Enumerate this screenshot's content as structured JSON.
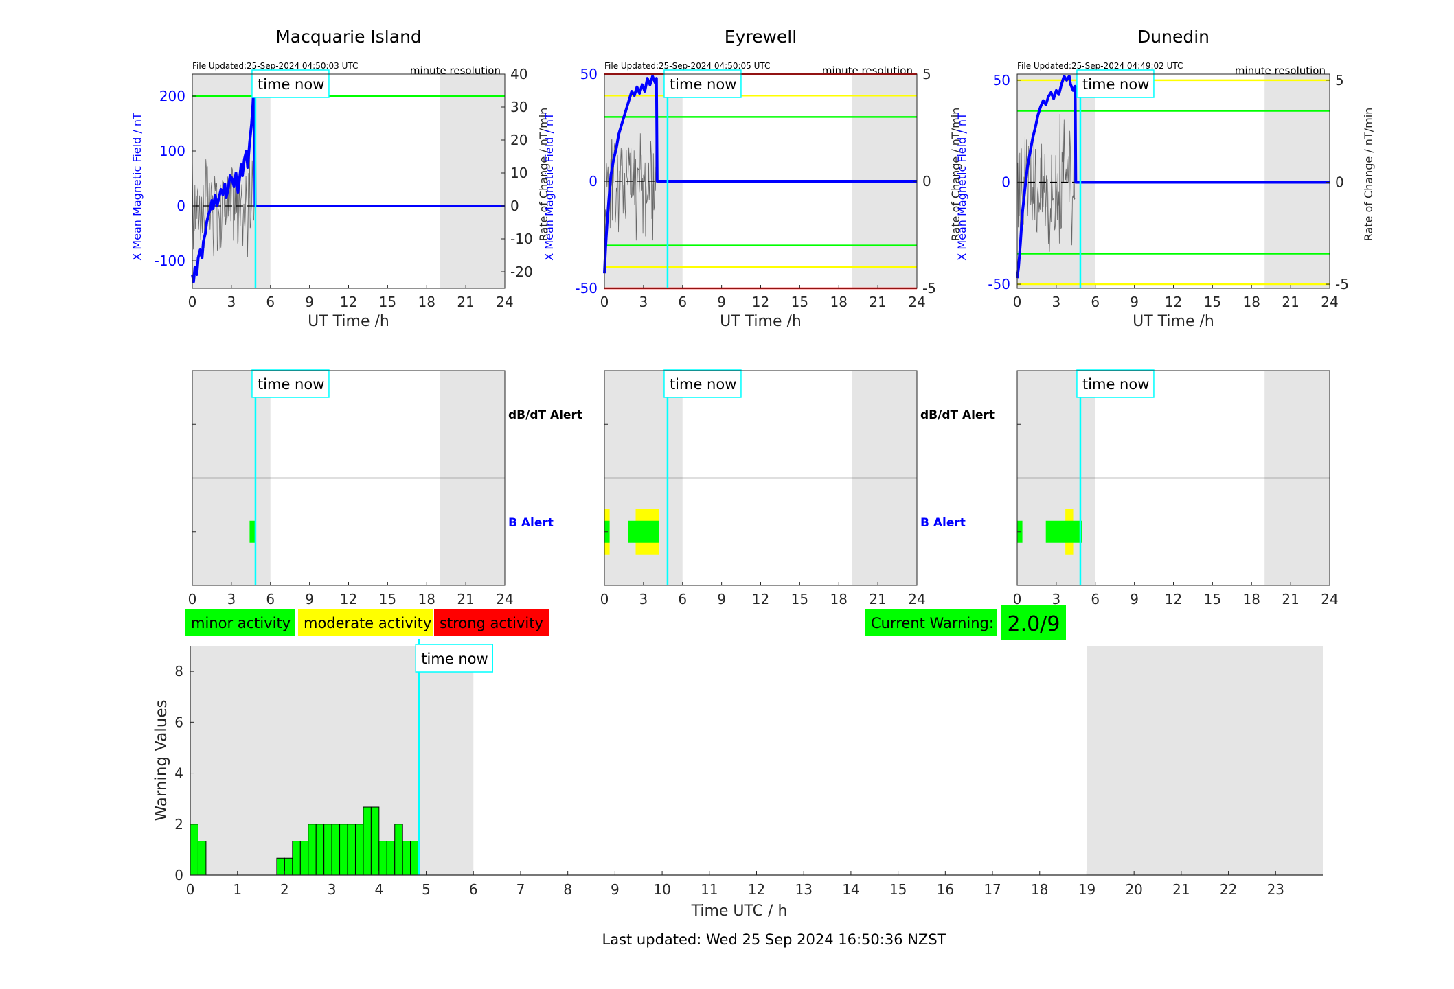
{
  "footer": "Last updated: Wed 25 Sep 2024 16:50:36 NZST",
  "time_now_label": "time now",
  "time_now_hour": 4.85,
  "night_shading": [
    [
      0,
      6
    ],
    [
      19,
      24
    ]
  ],
  "colors": {
    "blue": "#0000ff",
    "green": "#00ff00",
    "yellow": "#ffff00",
    "red": "#ff0000",
    "cyan": "#00ffff",
    "shade": "#e5e5e5"
  },
  "legend": {
    "minor": "minor activity",
    "moderate": "moderate activity",
    "strong": "strong activity"
  },
  "current_warning": {
    "label": "Current Warning:",
    "value": "2.0/9"
  },
  "alert_labels": {
    "dbdt": "dB/dT Alert",
    "b": "B Alert"
  },
  "stations": [
    {
      "name": "Macquarie Island",
      "file_updated": "File Updated:25-Sep-2024 04:50:03 UTC",
      "resolution": "minute resolution",
      "xlabel": "UT Time /h",
      "ylabel_left": "X Mean Magnetic Field / nT",
      "ylabel_right": "Rate of Change / nT/min",
      "left_range": [
        -150,
        240
      ],
      "left_ticks": [
        -100,
        0,
        100,
        200
      ],
      "right_range": [
        -25,
        40
      ],
      "right_ticks": [
        -20,
        -10,
        0,
        10,
        20,
        30,
        40
      ],
      "x_ticks": [
        0,
        3,
        6,
        9,
        12,
        15,
        18,
        21,
        24
      ],
      "thresholds": [
        {
          "value": 200,
          "color": "green"
        }
      ],
      "field_trace": [
        [
          0,
          -125
        ],
        [
          0.1,
          -138
        ],
        [
          0.2,
          -112
        ],
        [
          0.35,
          -125
        ],
        [
          0.45,
          -95
        ],
        [
          0.6,
          -80
        ],
        [
          0.75,
          -95
        ],
        [
          0.85,
          -65
        ],
        [
          1.0,
          -50
        ],
        [
          1.1,
          -30
        ],
        [
          1.25,
          -15
        ],
        [
          1.4,
          -5
        ],
        [
          1.5,
          10
        ],
        [
          1.6,
          -5
        ],
        [
          1.75,
          20
        ],
        [
          1.9,
          0
        ],
        [
          2.05,
          15
        ],
        [
          2.2,
          30
        ],
        [
          2.35,
          20
        ],
        [
          2.5,
          40
        ],
        [
          2.6,
          15
        ],
        [
          2.75,
          30
        ],
        [
          2.9,
          55
        ],
        [
          3.05,
          50
        ],
        [
          3.2,
          35
        ],
        [
          3.35,
          60
        ],
        [
          3.5,
          25
        ],
        [
          3.6,
          45
        ],
        [
          3.75,
          75
        ],
        [
          3.85,
          55
        ],
        [
          4.0,
          85
        ],
        [
          4.15,
          100
        ],
        [
          4.25,
          70
        ],
        [
          4.4,
          115
        ],
        [
          4.55,
          150
        ],
        [
          4.65,
          185
        ],
        [
          4.72,
          220
        ],
        [
          4.78,
          210
        ],
        [
          4.82,
          0
        ],
        [
          24,
          0
        ]
      ],
      "b_alert": [
        {
          "start": 4.4,
          "end": 4.8,
          "level": "green"
        }
      ]
    },
    {
      "name": "Eyrewell",
      "file_updated": "File Updated:25-Sep-2024 04:50:05 UTC",
      "resolution": "minute resolution",
      "xlabel": "UT Time /h",
      "ylabel_left": "X Mean Magnetic Field / nT",
      "ylabel_right": "Rate of Change / nT/min",
      "left_range": [
        -50,
        50
      ],
      "left_ticks": [
        -50,
        0,
        50
      ],
      "right_range": [
        -5,
        5
      ],
      "right_ticks": [
        -5,
        0,
        5
      ],
      "x_ticks": [
        0,
        3,
        6,
        9,
        12,
        15,
        18,
        21,
        24
      ],
      "thresholds": [
        {
          "value": 50,
          "color": "red"
        },
        {
          "value": 40,
          "color": "yellow"
        },
        {
          "value": 30,
          "color": "green"
        },
        {
          "value": -30,
          "color": "green"
        },
        {
          "value": -40,
          "color": "yellow"
        },
        {
          "value": -50,
          "color": "red"
        }
      ],
      "field_trace": [
        [
          0,
          -43
        ],
        [
          0.1,
          -30
        ],
        [
          0.2,
          -20
        ],
        [
          0.35,
          -8
        ],
        [
          0.5,
          3
        ],
        [
          0.7,
          10
        ],
        [
          0.9,
          15
        ],
        [
          1.1,
          22
        ],
        [
          1.3,
          26
        ],
        [
          1.5,
          30
        ],
        [
          1.7,
          34
        ],
        [
          1.9,
          38
        ],
        [
          2.1,
          42
        ],
        [
          2.3,
          40
        ],
        [
          2.5,
          44
        ],
        [
          2.7,
          41
        ],
        [
          2.9,
          45
        ],
        [
          3.1,
          42
        ],
        [
          3.3,
          48
        ],
        [
          3.5,
          45
        ],
        [
          3.7,
          49
        ],
        [
          3.9,
          46
        ],
        [
          4.0,
          48
        ],
        [
          4.05,
          0
        ],
        [
          24,
          0
        ]
      ],
      "b_alert": [
        {
          "start": 0,
          "end": 0.4,
          "level": "yellow"
        },
        {
          "start": 0,
          "end": 0.4,
          "level": "green"
        },
        {
          "start": 2.4,
          "end": 4.2,
          "level": "yellow"
        },
        {
          "start": 1.8,
          "end": 4.2,
          "level": "green"
        }
      ]
    },
    {
      "name": "Dunedin",
      "file_updated": "File Updated:25-Sep-2024 04:49:02 UTC",
      "resolution": "minute resolution",
      "xlabel": "UT Time /h",
      "ylabel_left": "X Mean Magnetic Field / nT",
      "ylabel_right": "Rate of Change / nT/min",
      "left_range": [
        -52,
        53
      ],
      "left_ticks": [
        -50,
        0,
        50
      ],
      "right_range": [
        -5.2,
        5.3
      ],
      "right_ticks": [
        -5,
        0,
        5
      ],
      "x_ticks": [
        0,
        3,
        6,
        9,
        12,
        15,
        18,
        21,
        24
      ],
      "thresholds": [
        {
          "value": 50,
          "color": "yellow"
        },
        {
          "value": 35,
          "color": "green"
        },
        {
          "value": -35,
          "color": "green"
        },
        {
          "value": -50,
          "color": "yellow"
        }
      ],
      "field_trace": [
        [
          0,
          -47
        ],
        [
          0.1,
          -42
        ],
        [
          0.25,
          -30
        ],
        [
          0.4,
          -15
        ],
        [
          0.6,
          -3
        ],
        [
          0.8,
          8
        ],
        [
          1.0,
          15
        ],
        [
          1.2,
          22
        ],
        [
          1.4,
          27
        ],
        [
          1.6,
          33
        ],
        [
          1.8,
          37
        ],
        [
          2.0,
          40
        ],
        [
          2.2,
          38
        ],
        [
          2.4,
          42
        ],
        [
          2.6,
          44
        ],
        [
          2.8,
          41
        ],
        [
          3.0,
          45
        ],
        [
          3.2,
          43
        ],
        [
          3.4,
          48
        ],
        [
          3.6,
          52
        ],
        [
          3.8,
          50
        ],
        [
          4.0,
          52
        ],
        [
          4.1,
          48
        ],
        [
          4.3,
          45
        ],
        [
          4.45,
          47
        ],
        [
          4.5,
          0
        ],
        [
          24,
          0
        ]
      ],
      "b_alert": [
        {
          "start": 0,
          "end": 0.4,
          "level": "green"
        },
        {
          "start": 3.7,
          "end": 4.3,
          "level": "yellow"
        },
        {
          "start": 2.2,
          "end": 5.0,
          "level": "green"
        }
      ]
    }
  ],
  "warning_chart": {
    "ylabel": "Warning Values",
    "xlabel": "Time UTC / h",
    "ylim": [
      0,
      9
    ],
    "y_ticks": [
      0,
      2,
      4,
      6,
      8
    ],
    "x_ticks": [
      0,
      1,
      2,
      3,
      4,
      5,
      6,
      7,
      8,
      9,
      10,
      11,
      12,
      13,
      14,
      15,
      16,
      17,
      18,
      19,
      20,
      21,
      22,
      23
    ],
    "xlim": [
      0,
      24
    ],
    "bar_width_h": 0.1667,
    "bars": [
      {
        "start": 0.0,
        "value": 2.0
      },
      {
        "start": 0.1667,
        "value": 1.333
      },
      {
        "start": 1.8333,
        "value": 0.667
      },
      {
        "start": 2.0,
        "value": 0.667
      },
      {
        "start": 2.1667,
        "value": 1.333
      },
      {
        "start": 2.3333,
        "value": 1.333
      },
      {
        "start": 2.5,
        "value": 2.0
      },
      {
        "start": 2.6667,
        "value": 2.0
      },
      {
        "start": 2.8333,
        "value": 2.0
      },
      {
        "start": 3.0,
        "value": 2.0
      },
      {
        "start": 3.1667,
        "value": 2.0
      },
      {
        "start": 3.3333,
        "value": 2.0
      },
      {
        "start": 3.5,
        "value": 2.0
      },
      {
        "start": 3.6667,
        "value": 2.667
      },
      {
        "start": 3.8333,
        "value": 2.667
      },
      {
        "start": 4.0,
        "value": 1.333
      },
      {
        "start": 4.1667,
        "value": 1.333
      },
      {
        "start": 4.3333,
        "value": 2.0
      },
      {
        "start": 4.5,
        "value": 1.333
      },
      {
        "start": 4.6667,
        "value": 1.333
      }
    ]
  }
}
